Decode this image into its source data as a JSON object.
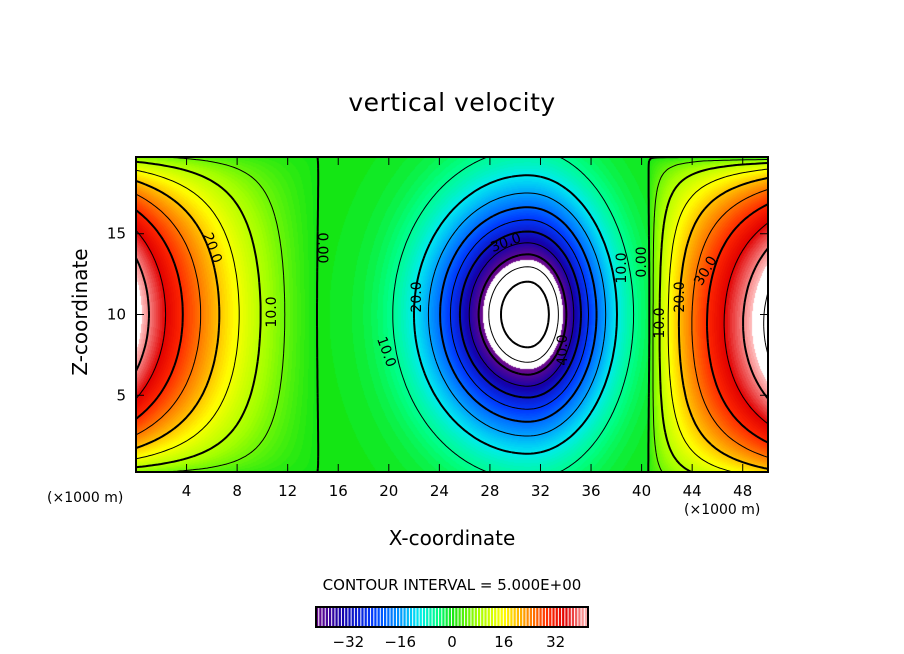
{
  "chart_data": {
    "type": "contour",
    "title": "vertical velocity",
    "xlabel": "X-coordinate",
    "ylabel": "Z-coordinate",
    "x_unit_label": "(×1000 m)",
    "z_unit_label": "(×1000 m)",
    "xlim": [
      0,
      50
    ],
    "ylim": [
      0.25,
      19.75
    ],
    "x_ticks": [
      "4",
      "8",
      "12",
      "16",
      "20",
      "24",
      "28",
      "32",
      "36",
      "40",
      "44",
      "48"
    ],
    "x_tick_values": [
      4,
      8,
      12,
      16,
      20,
      24,
      28,
      32,
      36,
      40,
      44,
      48
    ],
    "y_ticks": [
      "5",
      "10",
      "15"
    ],
    "y_tick_values": [
      5,
      10,
      15
    ],
    "contour_interval_text": "CONTOUR INTERVAL = 5.000E+00",
    "contour_interval": 5,
    "contour_labels": [
      "20.0",
      "10.0",
      "0.00",
      "10.0",
      "20.0",
      "30.0",
      "40.0",
      "10.0",
      "0.00",
      "10.0",
      "20.0",
      "30.0"
    ],
    "colorbar": {
      "range": [
        -42,
        42
      ],
      "ticks": [
        "−32",
        "−16",
        "0",
        "16",
        "32"
      ],
      "tick_values": [
        -32,
        -16,
        0,
        16,
        32
      ]
    },
    "features": {
      "positive_max_left": {
        "x": 0,
        "z": 10,
        "approx_value": 44
      },
      "positive_max_right": {
        "x": 49,
        "z": 9,
        "approx_value": 44
      },
      "negative_min": {
        "x": 31,
        "z": 10,
        "approx_value": -55
      }
    }
  }
}
